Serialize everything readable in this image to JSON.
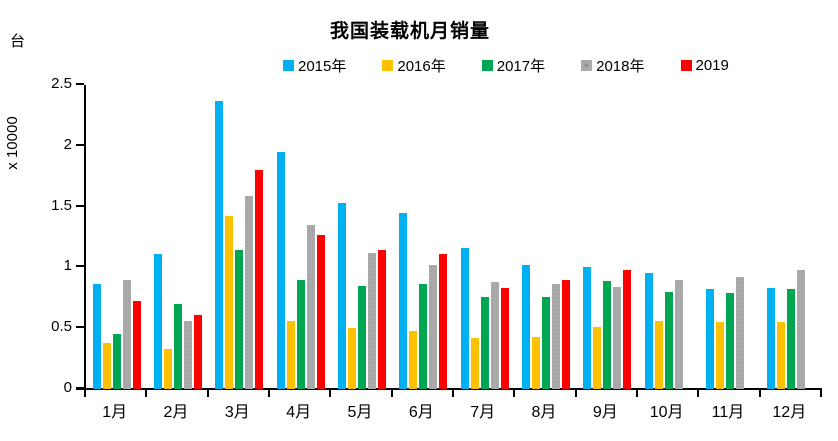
{
  "title": "我国装载机月销量",
  "unit_label": "台",
  "y_axis_label": "x 10000",
  "chart_data": {
    "type": "bar",
    "title": "我国装载机月销量",
    "unit": "台",
    "ylabel": "x 10000",
    "xlabel": "",
    "ylim": [
      0,
      2.5
    ],
    "yticks": [
      0,
      0.5,
      1,
      1.5,
      2,
      2.5
    ],
    "grid": false,
    "legend_position": "top",
    "categories": [
      "1月",
      "2月",
      "3月",
      "4月",
      "5月",
      "6月",
      "7月",
      "8月",
      "9月",
      "10月",
      "11月",
      "12月"
    ],
    "series": [
      {
        "name": "2015年",
        "color": "#00B0F0",
        "textured": false,
        "values": [
          0.86,
          1.11,
          2.37,
          1.95,
          1.53,
          1.45,
          1.16,
          1.02,
          1.0,
          0.95,
          0.82,
          0.83
        ]
      },
      {
        "name": "2016年",
        "color": "#FFC000",
        "textured": false,
        "values": [
          0.38,
          0.33,
          1.42,
          0.56,
          0.5,
          0.48,
          0.42,
          0.43,
          0.51,
          0.56,
          0.55,
          0.55
        ]
      },
      {
        "name": "2017年",
        "color": "#00A651",
        "textured": false,
        "values": [
          0.45,
          0.7,
          1.14,
          0.9,
          0.85,
          0.86,
          0.76,
          0.76,
          0.89,
          0.8,
          0.79,
          0.82
        ]
      },
      {
        "name": "2018年",
        "color": "#ABABAB",
        "textured": true,
        "values": [
          0.9,
          0.56,
          1.59,
          1.35,
          1.12,
          1.02,
          0.88,
          0.86,
          0.84,
          0.9,
          0.92,
          0.98
        ]
      },
      {
        "name": "2019",
        "color": "#FF0000",
        "textured": false,
        "values": [
          0.72,
          0.61,
          1.8,
          1.27,
          1.14,
          1.11,
          0.83,
          0.9,
          0.98,
          null,
          null,
          null
        ]
      }
    ]
  }
}
